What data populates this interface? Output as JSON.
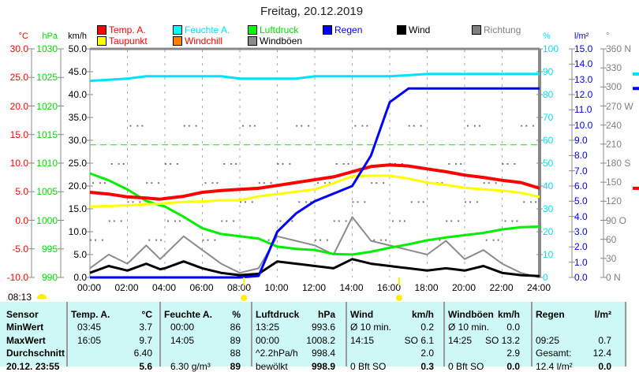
{
  "title": "Freitag, 20.12.2019",
  "legend": [
    {
      "label": "Temp. A.",
      "color": "#ff0000",
      "text": "#ff0000"
    },
    {
      "label": "Feuchte A.",
      "color": "#00ffff",
      "text": "#00e0ff"
    },
    {
      "label": "Luftdruck",
      "color": "#00ff00",
      "text": "#00dd00"
    },
    {
      "label": "Regen",
      "color": "#0000ff",
      "text": "#0000ff"
    },
    {
      "label": "Wind",
      "color": "#000000",
      "text": "#000000"
    },
    {
      "label": "Richtung",
      "color": "#808080",
      "text": "#808080"
    },
    {
      "label": "Taupunkt",
      "color": "#ffff00",
      "text": "#ff0000"
    },
    {
      "label": "Windchill",
      "color": "#ff8000",
      "text": "#ff0000"
    },
    {
      "label": "Windböen",
      "color": "#908890",
      "text": "#000000"
    }
  ],
  "axes": {
    "temp": {
      "unit": "°C",
      "ticks": [
        "30.0",
        "25.0",
        "20.0",
        "15.0",
        "10.0",
        "5.0",
        "0.0",
        "-5.0",
        "-10.0"
      ]
    },
    "pressure": {
      "unit": "hPa",
      "ticks": [
        "1030",
        "1025",
        "1020",
        "1015",
        "1010",
        "1005",
        "1000",
        "995",
        "990"
      ]
    },
    "wind": {
      "unit": "km/h",
      "ticks": [
        "50.0",
        "45.0",
        "40.0",
        "35.0",
        "30.0",
        "25.0",
        "20.0",
        "15.0",
        "10.0",
        "5.0",
        "0.0"
      ]
    },
    "humidity": {
      "unit": "%",
      "ticks": [
        "100",
        "90",
        "80",
        "70",
        "60",
        "50",
        "40",
        "30",
        "20",
        "10",
        "0"
      ]
    },
    "rain": {
      "unit": "l/m²",
      "ticks": [
        "15.0",
        "14.0",
        "13.0",
        "12.0",
        "11.0",
        "10.0",
        "9.0",
        "8.0",
        "7.0",
        "6.0",
        "5.0",
        "4.0",
        "3.0",
        "2.0",
        "1.0",
        "0.0"
      ]
    },
    "direction": {
      "unit": "°",
      "ticks": [
        "360 N",
        "330",
        "300",
        "270 W",
        "240",
        "210",
        "180 S",
        "150",
        "120",
        "90  O",
        "60",
        "30",
        "0   N"
      ]
    },
    "x": [
      "00:00",
      "02:00",
      "04:00",
      "06:00",
      "08:00",
      "10:00",
      "12:00",
      "14:00",
      "16:00",
      "18:00",
      "20:00",
      "22:00",
      "24:00"
    ]
  },
  "sunrise": "08:13",
  "chart_data": {
    "type": "line",
    "title": "Freitag, 20.12.2019",
    "x_hours": [
      0,
      1,
      2,
      3,
      3.75,
      4,
      5,
      6,
      7,
      8,
      9,
      10,
      11,
      12,
      13,
      14,
      15,
      16,
      17,
      18,
      19,
      20,
      21,
      22,
      23,
      24
    ],
    "series": [
      {
        "name": "Temp. A.",
        "unit": "°C",
        "values": [
          4.9,
          4.6,
          4.1,
          3.9,
          3.7,
          3.8,
          4.2,
          4.9,
          5.2,
          5.4,
          5.6,
          6.1,
          6.6,
          7.1,
          7.6,
          8.5,
          9.4,
          9.7,
          9.5,
          9.0,
          8.5,
          7.9,
          7.5,
          7.0,
          6.6,
          5.6
        ]
      },
      {
        "name": "Taupunkt",
        "unit": "°C",
        "values": [
          2.4,
          2.5,
          2.6,
          2.8,
          2.9,
          3.0,
          3.2,
          3.3,
          3.5,
          3.5,
          4.2,
          4.6,
          5.0,
          5.4,
          6.5,
          7.7,
          7.8,
          7.8,
          7.3,
          6.6,
          6.2,
          5.7,
          5.4,
          5.2,
          4.8,
          4.1
        ]
      },
      {
        "name": "Feuchte A.",
        "unit": "%",
        "values": [
          86,
          86.5,
          87,
          88,
          88,
          88,
          88,
          88,
          88,
          87,
          87,
          87,
          87,
          88,
          88,
          88,
          88,
          88,
          88.5,
          89,
          89,
          89,
          89,
          89,
          89,
          89
        ]
      },
      {
        "name": "Luftdruck",
        "unit": "hPa",
        "values": [
          1008.2,
          1007.0,
          1005.4,
          1003.4,
          1002.6,
          1002.4,
          1000.6,
          998.6,
          997.6,
          997.2,
          996.8,
          995.4,
          995.0,
          994.8,
          994.1,
          994.0,
          994.5,
          995.2,
          995.8,
          996.5,
          997.0,
          997.4,
          997.8,
          998.4,
          998.8,
          998.9
        ]
      },
      {
        "name": "Regen",
        "unit": "l/m²",
        "values": [
          0,
          0,
          0,
          0,
          0,
          0,
          0,
          0,
          0,
          0,
          0.1,
          3.0,
          4.2,
          5.0,
          5.5,
          6.0,
          8.0,
          11.5,
          12.4,
          12.4,
          12.4,
          12.4,
          12.4,
          12.4,
          12.4,
          12.4
        ]
      },
      {
        "name": "Wind",
        "unit": "km/h",
        "values": [
          1.0,
          2.5,
          1.5,
          3.0,
          1.8,
          2.0,
          3.5,
          2.0,
          1.0,
          0.5,
          0.8,
          3.5,
          3.0,
          2.5,
          2.0,
          4.0,
          3.0,
          2.5,
          2.0,
          1.5,
          2.0,
          1.5,
          2.5,
          1.0,
          0.5,
          0.3
        ]
      },
      {
        "name": "Windböen",
        "unit": "km/h",
        "values": [
          2.0,
          5.0,
          3.0,
          7.0,
          4.0,
          5.0,
          9.0,
          6.0,
          3.0,
          1.0,
          2.0,
          9.0,
          8.0,
          7.0,
          5.0,
          13.2,
          8.0,
          7.0,
          6.0,
          5.0,
          8.0,
          4.0,
          6.0,
          3.0,
          1.0,
          0.0
        ]
      }
    ],
    "reference_line": {
      "name": "Luftdruck",
      "value": 1013.2
    },
    "ylim": {
      "temp": [
        -10,
        30
      ],
      "pressure": [
        990,
        1030
      ],
      "wind": [
        0,
        50
      ],
      "humidity": [
        0,
        100
      ],
      "rain": [
        0,
        15
      ],
      "direction": [
        0,
        360
      ]
    },
    "xlim": [
      0,
      24
    ]
  },
  "table": {
    "headers": [
      [
        "Sensor",
        ""
      ],
      [
        "Temp. A.",
        "°C"
      ],
      [
        "Feuchte A.",
        "%"
      ],
      [
        "Luftdruck",
        "hPa"
      ],
      [
        "Wind",
        "km/h"
      ],
      [
        "Windböen",
        "km/h"
      ],
      [
        "Regen",
        "l/m²"
      ]
    ],
    "rows": [
      {
        "label": "MinWert",
        "cells": [
          [
            "03:45",
            "3.7"
          ],
          [
            "00:00",
            "86"
          ],
          [
            "13:25",
            "993.6"
          ],
          [
            "Ø 10 min.",
            "0.2"
          ],
          [
            "Ø 10 min.",
            "0.0"
          ],
          [
            "",
            ""
          ]
        ]
      },
      {
        "label": "MaxWert",
        "cells": [
          [
            "16:05",
            "9.7"
          ],
          [
            "14:05",
            "89"
          ],
          [
            "00:00",
            "1008.2"
          ],
          [
            "14:15",
            "SO 6.1"
          ],
          [
            "14:25",
            "SO 13.2"
          ],
          [
            "09:25",
            "0.7"
          ]
        ]
      },
      {
        "label": "Durchschnitt",
        "cells": [
          [
            "",
            "6.40"
          ],
          [
            "",
            "88"
          ],
          [
            "^2.2hPa/h",
            "998.4"
          ],
          [
            "",
            "2.0"
          ],
          [
            "",
            "2.9"
          ],
          [
            "Gesamt:",
            "12.4"
          ]
        ]
      },
      {
        "label": "20.12. 23:55",
        "cells": [
          [
            "",
            "5.6"
          ],
          [
            "6.30 g/m³",
            "89"
          ],
          [
            "bewölkt",
            "998.9"
          ],
          [
            "0 Bft SO",
            "0.3"
          ],
          [
            "0 Bft SO",
            "0.0"
          ],
          [
            "12.4 l/m²",
            "0.0"
          ]
        ]
      }
    ]
  }
}
